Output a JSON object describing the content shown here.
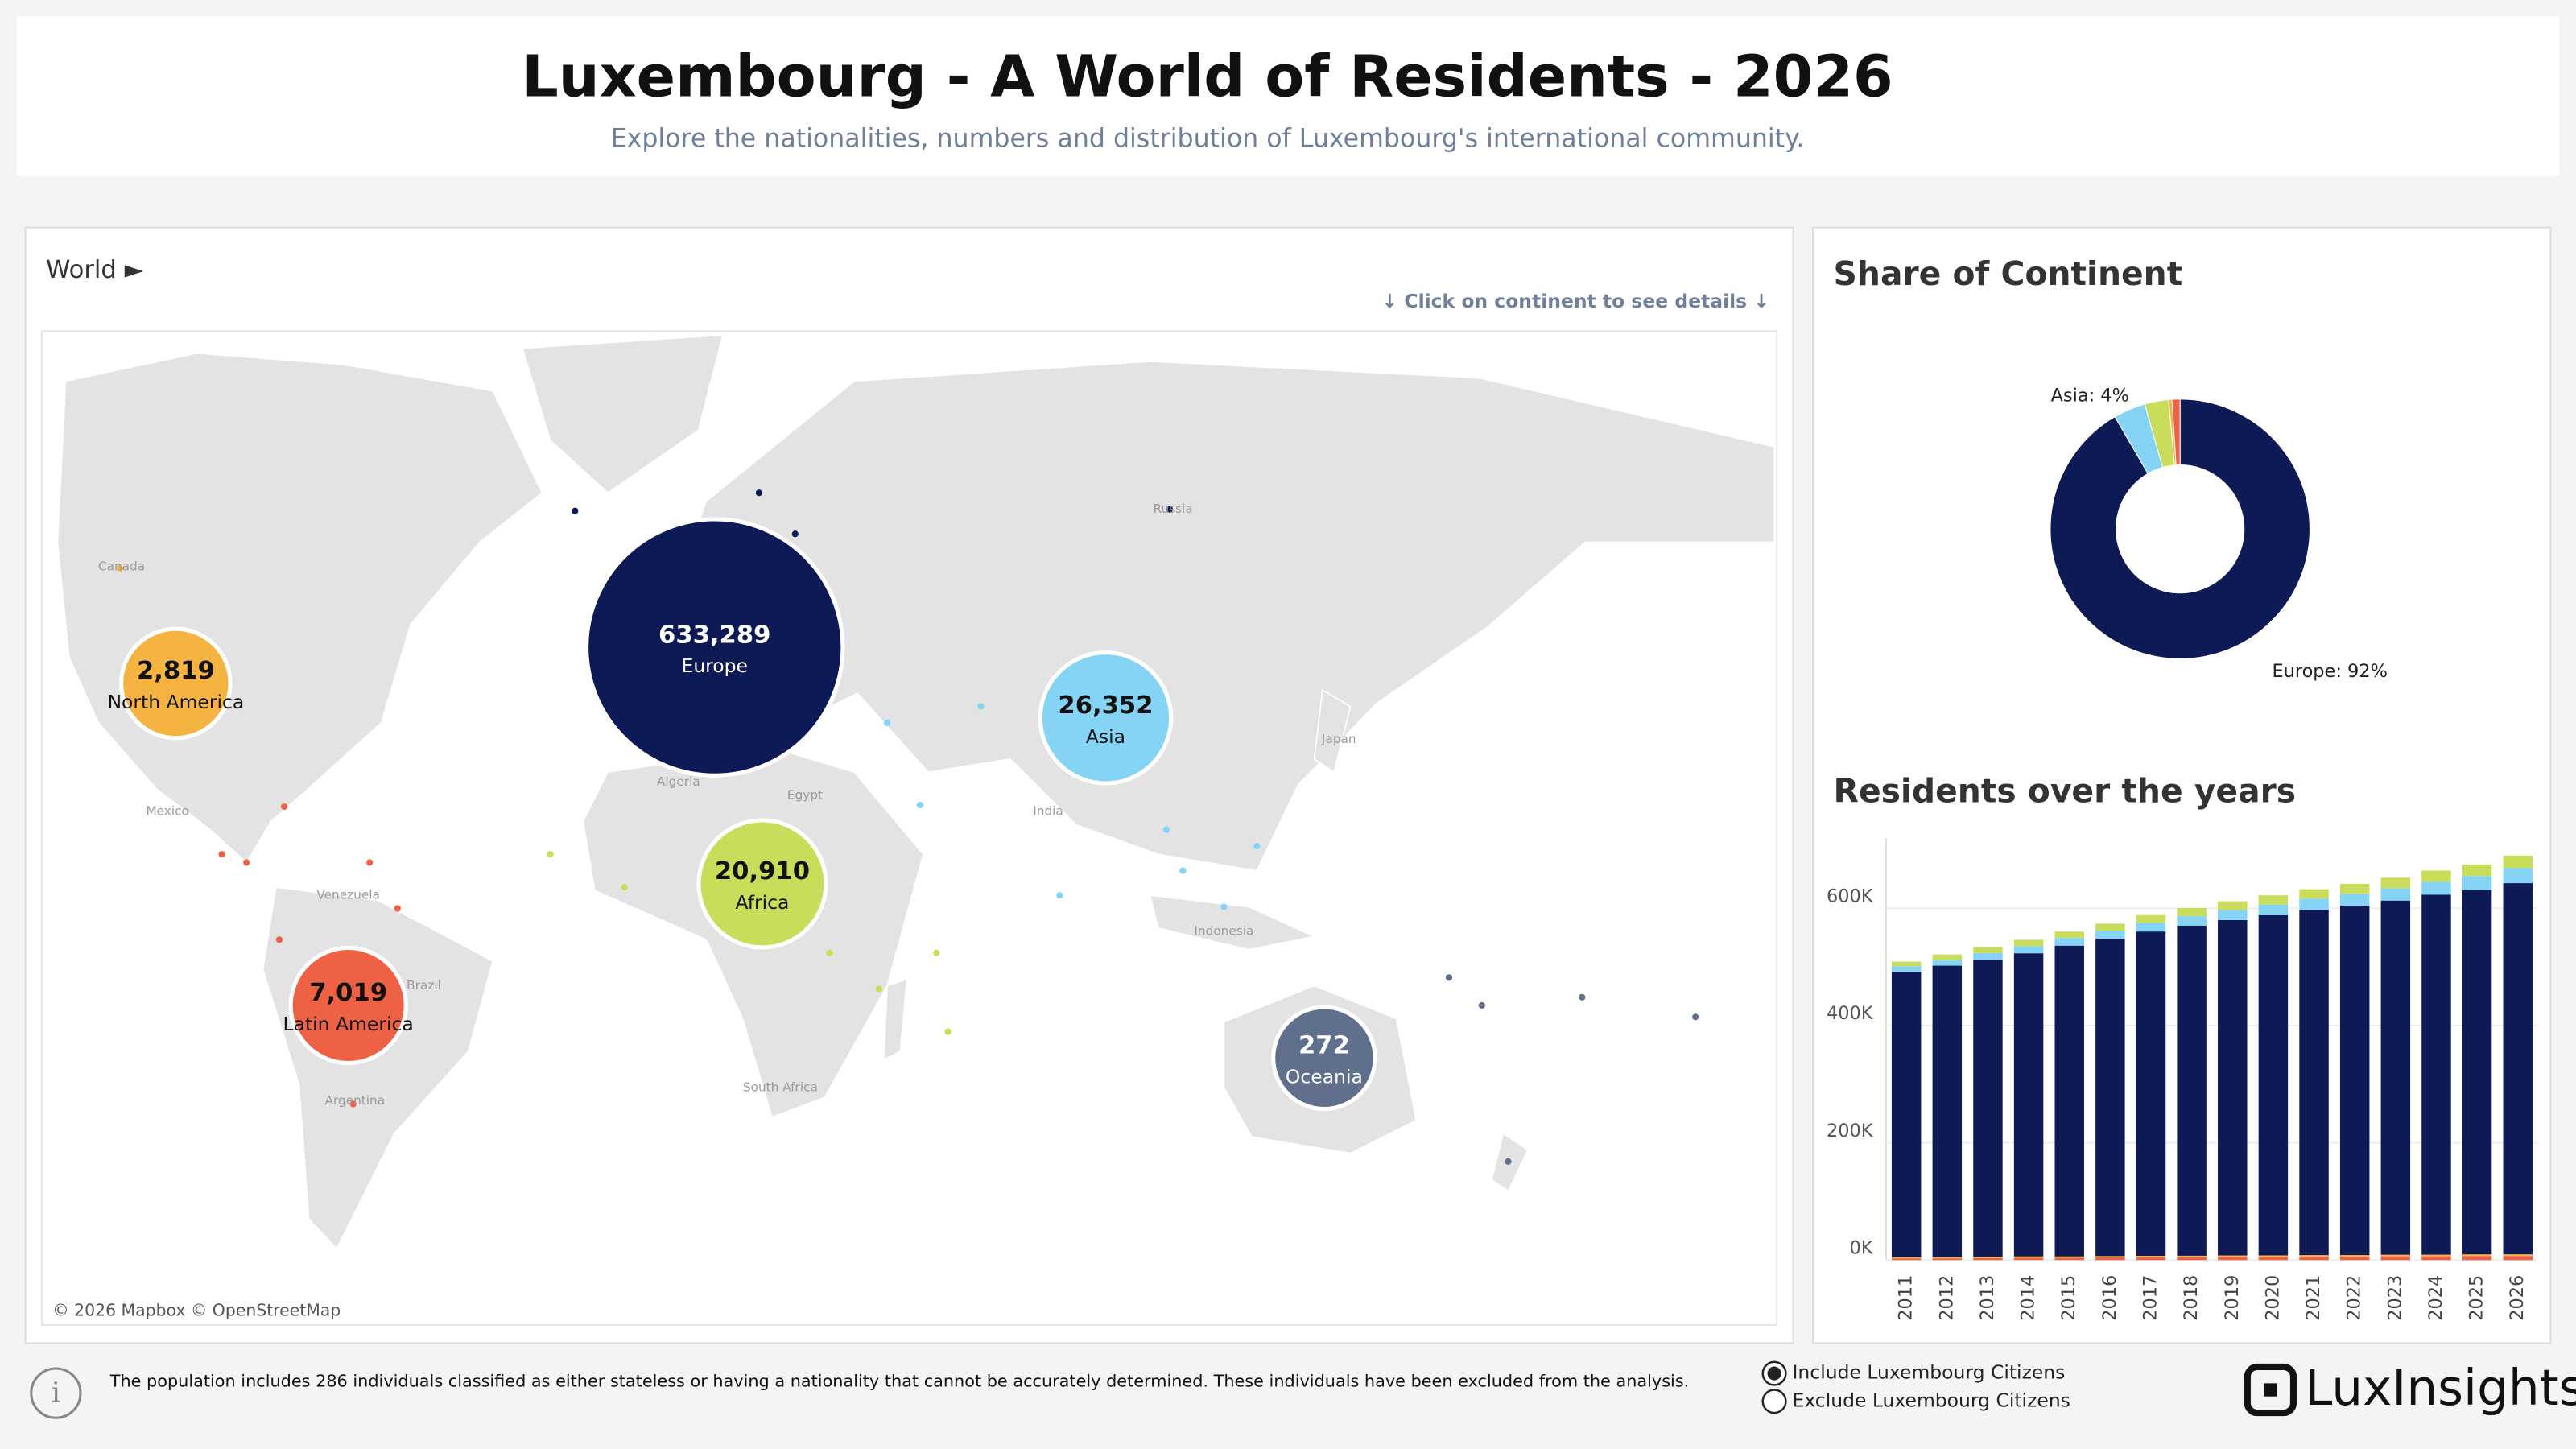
{
  "header": {
    "title": "Luxembourg - A World of Residents - 2026",
    "subtitle": "Explore the nationalities, numbers and distribution of Luxembourg's international community."
  },
  "map": {
    "breadcrumb": "World ►",
    "hint": "↓ Click on continent to see details ↓",
    "attribution": "© 2026 Mapbox © OpenStreetMap",
    "country_labels": [
      "Canada",
      "Mexico",
      "Russia",
      "Japan",
      "India",
      "Egypt",
      "Algeria",
      "Venezuela",
      "Brazil",
      "Argentina",
      "South Africa",
      "Indonesia"
    ]
  },
  "chart_data": [
    {
      "type": "bubble",
      "categories": [
        "Europe",
        "Asia",
        "Africa",
        "Latin America",
        "North America",
        "Oceania"
      ],
      "values": [
        633289,
        26352,
        20910,
        7019,
        2819,
        272
      ],
      "value_labels": [
        "633,289",
        "26,352",
        "20,910",
        "7,019",
        "2,819",
        "272"
      ],
      "colors": [
        "#0e1a56",
        "#86d4f5",
        "#c9dd5a",
        "#ef6144",
        "#f5b342",
        "#5f6f8c"
      ]
    },
    {
      "type": "pie",
      "title": "Share of Continent",
      "categories": [
        "Europe",
        "Asia",
        "Africa",
        "North America",
        "Latin America"
      ],
      "values": [
        92,
        4,
        3,
        0.4,
        1
      ],
      "value_labels": [
        "Europe: 92%",
        "Asia: 4%",
        null,
        null,
        null
      ],
      "colors": [
        "#0e1a56",
        "#86d4f5",
        "#c9dd5a",
        "#f5b342",
        "#ef6144"
      ]
    },
    {
      "type": "stacked_bar",
      "title": "Residents over the years",
      "categories": [
        "2011",
        "2012",
        "2013",
        "2014",
        "2015",
        "2016",
        "2017",
        "2018",
        "2019",
        "2020",
        "2021",
        "2022",
        "2023",
        "2024",
        "2025",
        "2026"
      ],
      "series": [
        {
          "name": "Latin America",
          "color": "#ef6144",
          "values": [
            3000,
            3000,
            3500,
            4000,
            4000,
            4500,
            5000,
            5000,
            5500,
            5500,
            6000,
            6000,
            6500,
            6500,
            7000,
            7000
          ]
        },
        {
          "name": "North America",
          "color": "#f5b342",
          "values": [
            2000,
            2100,
            2100,
            2200,
            2200,
            2300,
            2300,
            2400,
            2400,
            2500,
            2500,
            2600,
            2600,
            2700,
            2700,
            2800
          ]
        },
        {
          "name": "Europe",
          "color": "#0e1a56",
          "values": [
            487000,
            497000,
            507000,
            517000,
            530000,
            541000,
            553000,
            563000,
            572000,
            580000,
            589000,
            596000,
            604000,
            614000,
            621000,
            633000
          ]
        },
        {
          "name": "Asia",
          "color": "#86d4f5",
          "values": [
            9000,
            10000,
            11000,
            12000,
            13000,
            14000,
            15000,
            16000,
            17000,
            18000,
            19000,
            20000,
            21000,
            22000,
            24000,
            26000
          ]
        },
        {
          "name": "Africa",
          "color": "#c9dd5a",
          "values": [
            8000,
            9000,
            10000,
            11000,
            11000,
            12000,
            13000,
            14000,
            15000,
            16000,
            16000,
            17000,
            18000,
            19000,
            20000,
            21000
          ]
        }
      ],
      "ylim": [
        0,
        720000
      ],
      "yticks": [
        {
          "value": 0,
          "label": "0K"
        },
        {
          "value": 200000,
          "label": "200K"
        },
        {
          "value": 400000,
          "label": "400K"
        },
        {
          "value": 600000,
          "label": "600K"
        }
      ],
      "grid": true
    }
  ],
  "footer": {
    "note": "The population includes 286 individuals classified as either stateless or having a nationality that cannot be accurately determined. These individuals have been excluded from the analysis.",
    "radio_options": [
      "Include Luxembourg Citizens",
      "Exclude Luxembourg Citizens"
    ],
    "selected": 0,
    "logo": "LuxInsights"
  }
}
